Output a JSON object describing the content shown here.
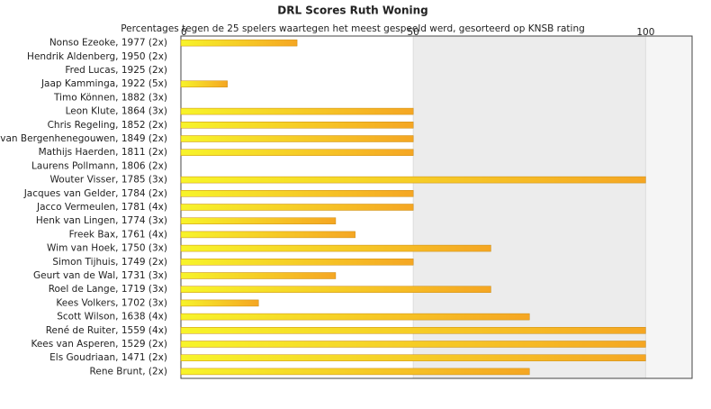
{
  "chart_data": {
    "type": "bar",
    "orientation": "horizontal",
    "title": "DRL Scores Ruth Woning",
    "subtitle": "Percentages tegen de 25 spelers waartegen het meest gespeeld werd, gesorteerd op KNSB rating",
    "categories": [
      "Nonso Ezeoke, 1977 (2x)",
      "Hendrik Aldenberg, 1950 (2x)",
      "Fred Lucas, 1925 (2x)",
      "Jaap Kamminga, 1922 (5x)",
      "Timo Können, 1882 (3x)",
      "Leon Klute, 1864 (3x)",
      "Chris Regeling, 1852 (2x)",
      "van Bergenhenegouwen, 1849 (2x)",
      "Mathijs Haerden, 1811 (2x)",
      "Laurens Pollmann, 1806 (2x)",
      "Wouter Visser, 1785 (3x)",
      "Jacques van Gelder, 1784 (2x)",
      "Jacco Vermeulen, 1781 (4x)",
      "Henk van Lingen, 1774 (3x)",
      "Freek Bax, 1761 (4x)",
      "Wim van Hoek, 1750 (3x)",
      "Simon Tijhuis, 1749 (2x)",
      "Geurt van de Wal, 1731 (3x)",
      "Roel de Lange, 1719 (3x)",
      "Kees Volkers, 1702 (3x)",
      "Scott Wilson, 1638 (4x)",
      "René de Ruiter, 1559 (4x)",
      "Kees van Asperen, 1529 (2x)",
      "Els Goudriaan, 1471 (2x)",
      "Rene Brunt,  (2x)"
    ],
    "values": [
      25,
      0,
      0,
      10,
      0,
      50,
      50,
      50,
      50,
      0,
      100,
      50,
      50,
      33.3,
      37.5,
      66.7,
      50,
      33.3,
      66.7,
      16.7,
      75,
      100,
      100,
      100,
      75
    ],
    "xlim": [
      0,
      110
    ],
    "xticks": [
      0,
      50,
      100
    ],
    "color": "#f5a623"
  }
}
